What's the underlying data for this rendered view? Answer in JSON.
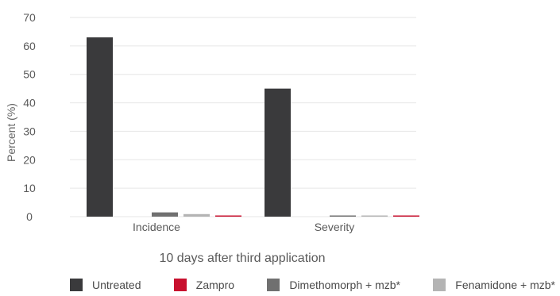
{
  "colors": {
    "untreated": "#3a3a3c",
    "zampro": "#c8102e",
    "dimethomorph": "#707070",
    "fenamidone": "#b4b4b4",
    "grid": "#e6e6e6"
  },
  "chart_data": {
    "type": "bar",
    "title": "",
    "xlabel": "10 days after third application",
    "ylabel": "Percent (%)",
    "ylim": [
      0,
      70
    ],
    "yticks": [
      0,
      10,
      20,
      30,
      40,
      50,
      60,
      70
    ],
    "categories": [
      "Incidence",
      "Severity"
    ],
    "series": [
      {
        "name": "Untreated",
        "color": "#3a3a3c",
        "values": [
          63,
          45
        ]
      },
      {
        "name": "Zampro",
        "color": "#c8102e",
        "values": [
          0.3,
          0.3
        ]
      },
      {
        "name": "Dimethomorph + mzb*",
        "color": "#707070",
        "values": [
          1.5,
          0.2
        ]
      },
      {
        "name": "Fenamidone + mzb*",
        "color": "#b4b4b4",
        "values": [
          0.9,
          0.2
        ]
      }
    ],
    "bar_order": [
      "Untreated",
      "Dimethomorph + mzb*",
      "Fenamidone + mzb*",
      "Zampro"
    ],
    "grid": true,
    "legend_position": "bottom"
  }
}
